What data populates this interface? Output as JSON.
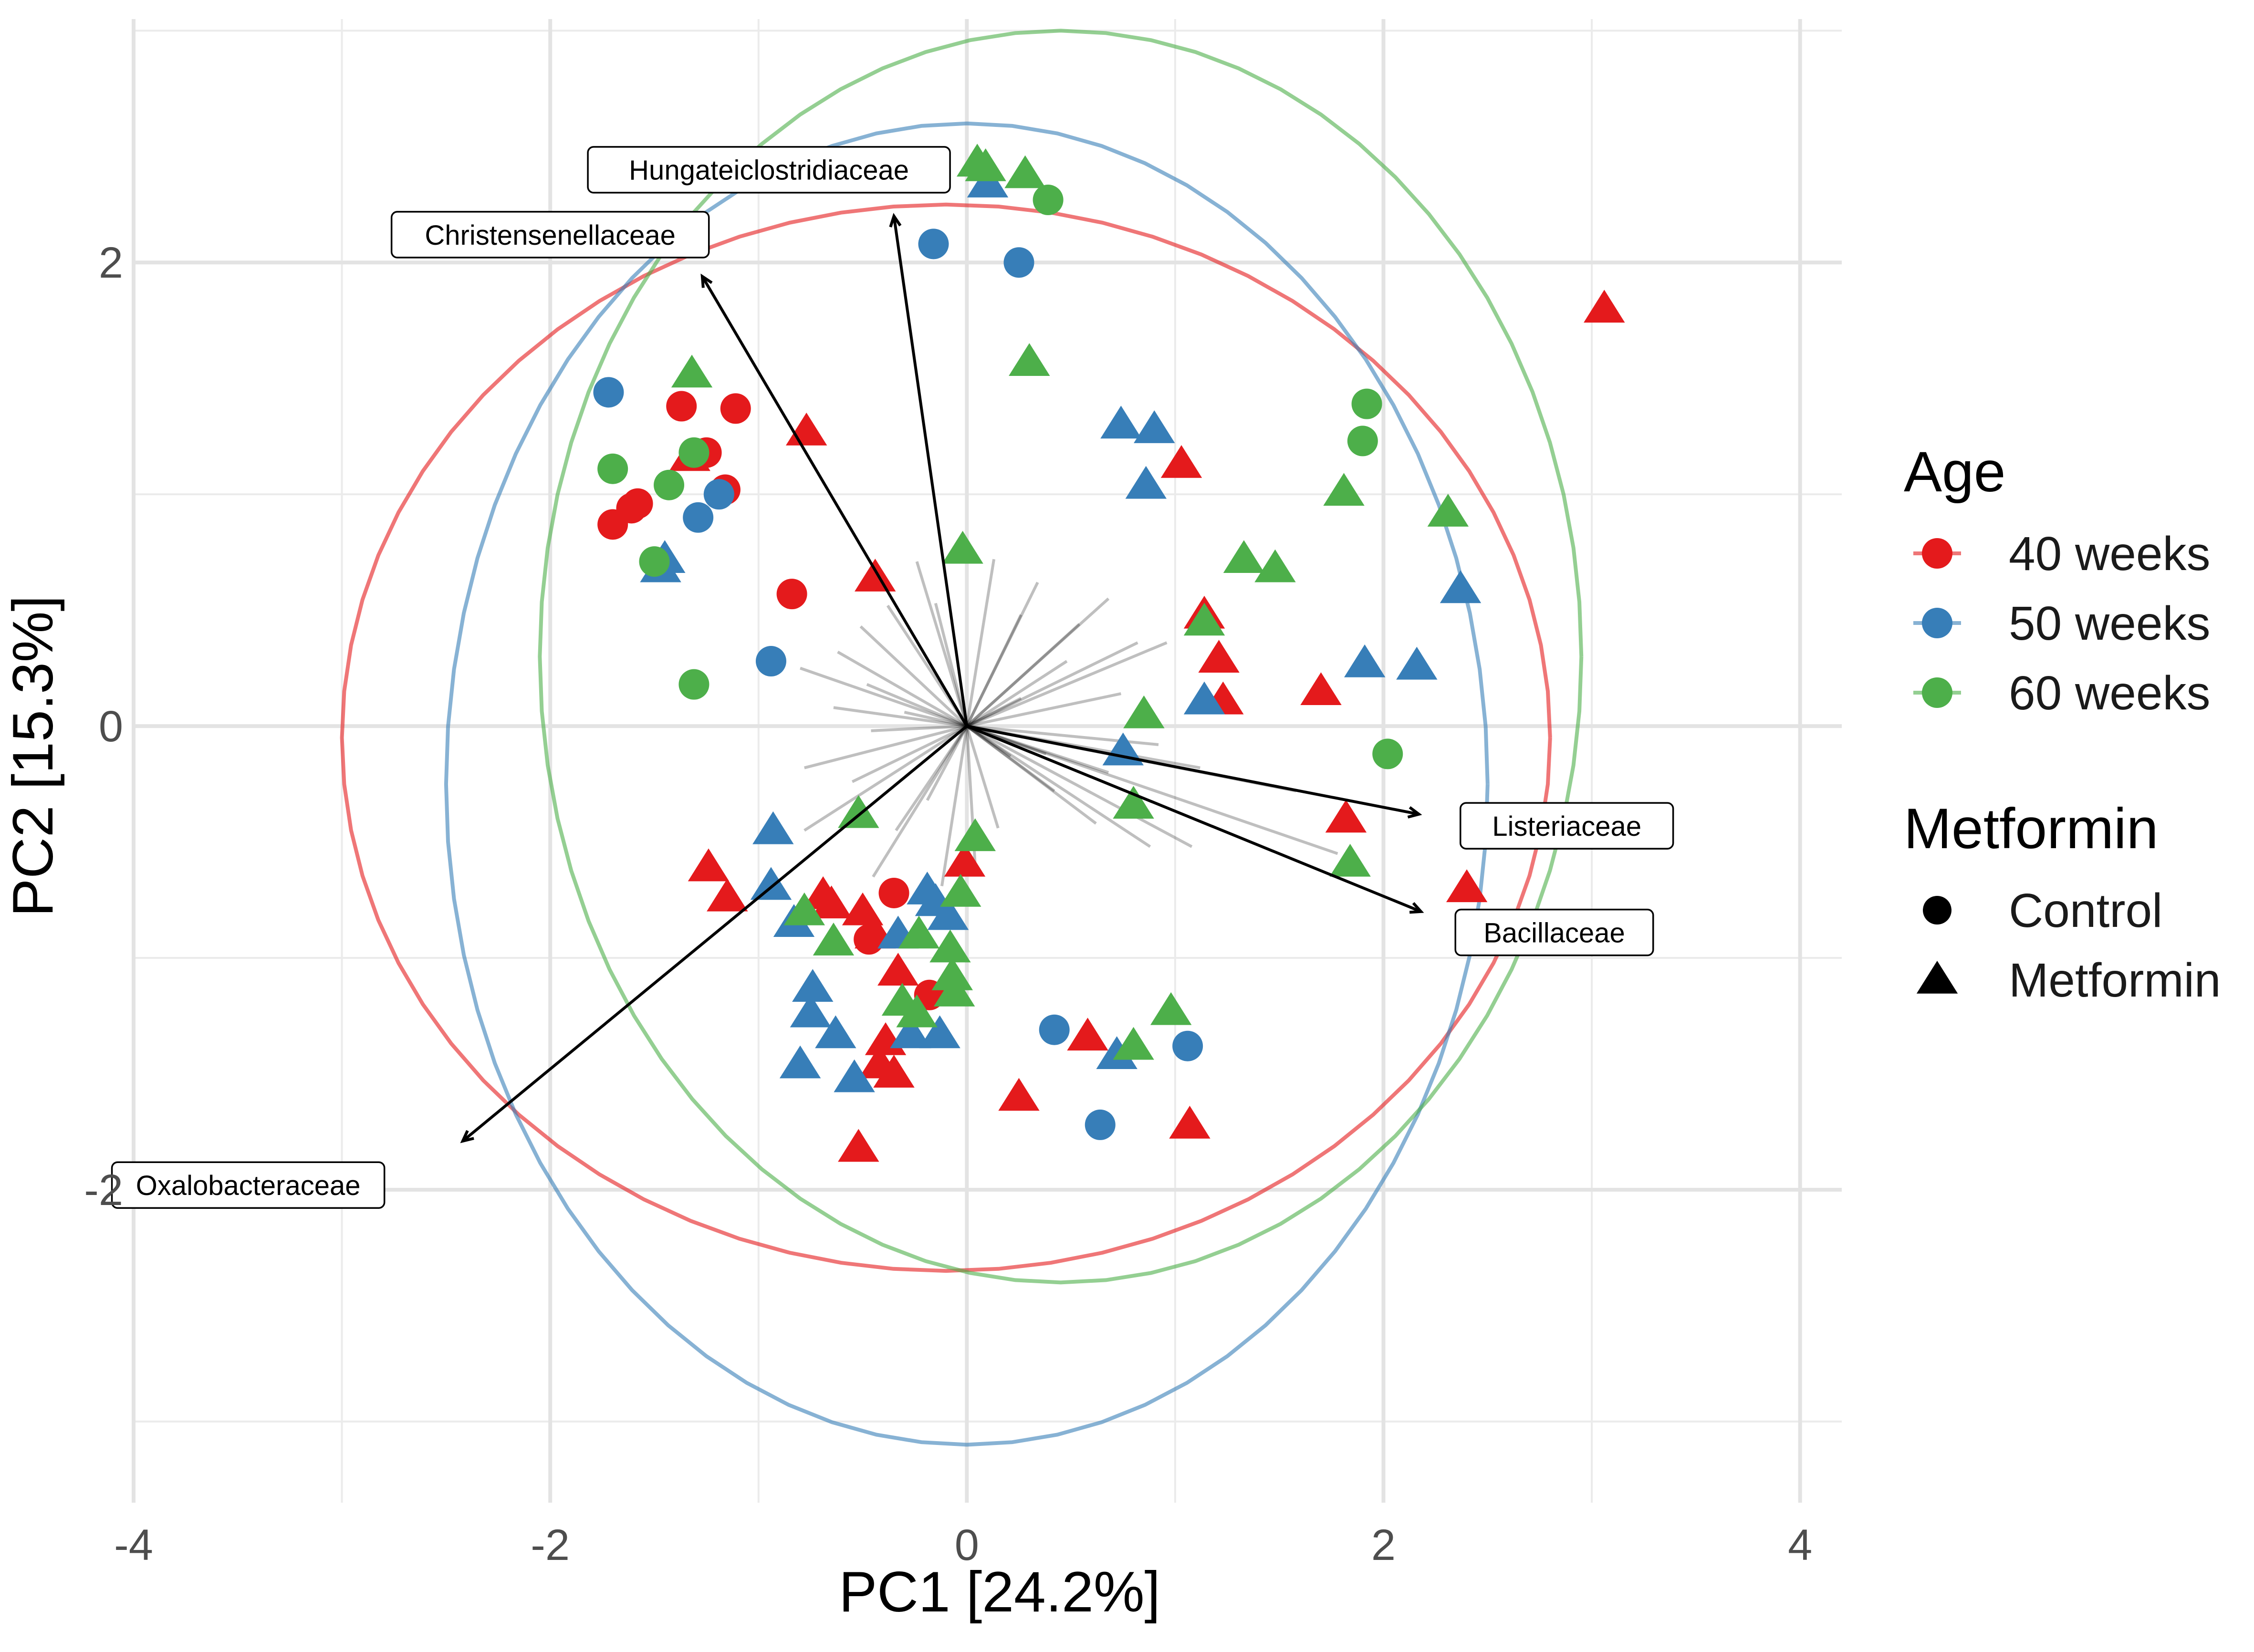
{
  "chart_data": {
    "type": "scatter",
    "subtype": "pca-biplot",
    "title": "",
    "xlabel": "PC1 [24.2%]",
    "ylabel": "PC2 [15.3%]",
    "xlim": [
      -4.0,
      4.2
    ],
    "ylim": [
      -3.35,
      3.05
    ],
    "x_ticks": [
      -4,
      -2,
      0,
      2,
      4
    ],
    "x_tick_labels": [
      "-4",
      "-2",
      "0",
      "2",
      "4"
    ],
    "y_ticks": [
      -2,
      0,
      2
    ],
    "y_tick_labels": [
      "-2",
      "0",
      "2"
    ],
    "grid": true,
    "legend_position": "right",
    "legends": [
      {
        "title": "Age",
        "entries": [
          {
            "label": "40 weeks",
            "color": "#E41A1C"
          },
          {
            "label": "50 weeks",
            "color": "#377EB8"
          },
          {
            "label": "60 weeks",
            "color": "#4DAF4A"
          }
        ]
      },
      {
        "title": "Metformin",
        "entries": [
          {
            "label": "Control",
            "shape": "circle"
          },
          {
            "label": "Metformin",
            "shape": "triangle"
          }
        ]
      }
    ],
    "colors": {
      "40 weeks": "#E41A1C",
      "50 weeks": "#377EB8",
      "60 weeks": "#4DAF4A"
    },
    "ellipses": [
      {
        "group": "40 weeks",
        "cx": -0.1,
        "cy": -0.05,
        "rx": 2.9,
        "ry": 2.3,
        "color": "#E41A1C"
      },
      {
        "group": "50 weeks",
        "cx": 0.0,
        "cy": -0.25,
        "rx": 2.5,
        "ry": 2.85,
        "color": "#377EB8"
      },
      {
        "group": "60 weeks",
        "cx": 0.45,
        "cy": 0.3,
        "rx": 2.5,
        "ry": 2.7,
        "color": "#4DAF4A"
      }
    ],
    "loadings": [
      {
        "label": "Hungateiclostridiaceae",
        "x": -0.35,
        "y": 2.2,
        "label_x": -0.95,
        "label_y": 2.4
      },
      {
        "label": "Christensenellaceae",
        "x": -1.27,
        "y": 1.94,
        "label_x": -2.0,
        "label_y": 2.12
      },
      {
        "label": "Listeriaceae",
        "x": 2.17,
        "y": -0.38,
        "label_x": 2.88,
        "label_y": -0.43
      },
      {
        "label": "Bacillaceae",
        "x": 2.18,
        "y": -0.8,
        "label_x": 2.82,
        "label_y": -0.89
      },
      {
        "label": "Oxalobacteraceae",
        "x": -2.42,
        "y": -1.79,
        "label_x": -3.45,
        "label_y": -1.98
      }
    ],
    "minor_loadings": [
      [
        -0.24,
        0.71
      ],
      [
        -0.15,
        0.53
      ],
      [
        0.13,
        0.72
      ],
      [
        0.34,
        0.62
      ],
      [
        0.68,
        0.55
      ],
      [
        0.82,
        0.36
      ],
      [
        0.96,
        0.36
      ],
      [
        0.48,
        0.28
      ],
      [
        0.74,
        0.14
      ],
      [
        0.26,
        0.12
      ],
      [
        -0.38,
        0.52
      ],
      [
        -0.51,
        0.43
      ],
      [
        -0.62,
        0.32
      ],
      [
        -0.8,
        0.25
      ],
      [
        -0.48,
        0.18
      ],
      [
        -0.3,
        0.06
      ],
      [
        -0.46,
        -0.02
      ],
      [
        -0.78,
        -0.18
      ],
      [
        -0.55,
        -0.24
      ],
      [
        -0.78,
        -0.45
      ],
      [
        -0.34,
        -0.45
      ],
      [
        -0.12,
        -0.69
      ],
      [
        0.04,
        -0.6
      ],
      [
        0.15,
        -0.44
      ],
      [
        0.42,
        -0.28
      ],
      [
        0.62,
        -0.42
      ],
      [
        0.88,
        -0.52
      ],
      [
        0.68,
        -0.2
      ],
      [
        0.38,
        -0.12
      ],
      [
        0.92,
        -0.08
      ],
      [
        -0.64,
        0.08
      ],
      [
        0.54,
        0.44
      ],
      [
        -0.19,
        -0.32
      ],
      [
        0.26,
        0.48
      ],
      [
        0.21,
        -0.13
      ],
      [
        -0.45,
        -0.65
      ],
      [
        1.12,
        -0.18
      ],
      [
        1.58,
        -0.28
      ],
      [
        1.08,
        -0.52
      ],
      [
        1.78,
        -0.55
      ]
    ],
    "points": [
      {
        "x": 3.06,
        "y": 1.8,
        "age": "40 weeks",
        "shape": "triangle"
      },
      {
        "x": -1.37,
        "y": 1.38,
        "age": "40 weeks",
        "shape": "circle"
      },
      {
        "x": -1.11,
        "y": 1.37,
        "age": "40 weeks",
        "shape": "circle"
      },
      {
        "x": -1.25,
        "y": 1.18,
        "age": "40 weeks",
        "shape": "circle"
      },
      {
        "x": -1.33,
        "y": 1.16,
        "age": "40 weeks",
        "shape": "triangle"
      },
      {
        "x": -1.16,
        "y": 1.02,
        "age": "40 weeks",
        "shape": "circle"
      },
      {
        "x": -1.58,
        "y": 0.96,
        "age": "40 weeks",
        "shape": "circle"
      },
      {
        "x": -1.61,
        "y": 0.94,
        "age": "40 weeks",
        "shape": "circle"
      },
      {
        "x": -1.7,
        "y": 0.87,
        "age": "40 weeks",
        "shape": "circle"
      },
      {
        "x": -0.77,
        "y": 1.27,
        "age": "40 weeks",
        "shape": "triangle"
      },
      {
        "x": -0.84,
        "y": 0.57,
        "age": "40 weeks",
        "shape": "circle"
      },
      {
        "x": -0.44,
        "y": 0.64,
        "age": "40 weeks",
        "shape": "triangle"
      },
      {
        "x": 1.03,
        "y": 1.13,
        "age": "40 weeks",
        "shape": "triangle"
      },
      {
        "x": 1.14,
        "y": 0.48,
        "age": "40 weeks",
        "shape": "triangle"
      },
      {
        "x": 1.21,
        "y": 0.29,
        "age": "40 weeks",
        "shape": "triangle"
      },
      {
        "x": 1.23,
        "y": 0.11,
        "age": "40 weeks",
        "shape": "triangle"
      },
      {
        "x": 1.7,
        "y": 0.15,
        "age": "40 weeks",
        "shape": "triangle"
      },
      {
        "x": 1.82,
        "y": -0.4,
        "age": "40 weeks",
        "shape": "triangle"
      },
      {
        "x": 2.4,
        "y": -0.7,
        "age": "40 weeks",
        "shape": "triangle"
      },
      {
        "x": -1.24,
        "y": -0.61,
        "age": "40 weeks",
        "shape": "triangle"
      },
      {
        "x": -1.15,
        "y": -0.74,
        "age": "40 weeks",
        "shape": "triangle"
      },
      {
        "x": -0.69,
        "y": -0.73,
        "age": "40 weeks",
        "shape": "triangle"
      },
      {
        "x": -0.65,
        "y": -0.77,
        "age": "40 weeks",
        "shape": "triangle"
      },
      {
        "x": -0.5,
        "y": -0.8,
        "age": "40 weeks",
        "shape": "triangle"
      },
      {
        "x": -0.35,
        "y": -0.72,
        "age": "40 weeks",
        "shape": "circle"
      },
      {
        "x": -0.44,
        "y": -0.9,
        "age": "40 weeks",
        "shape": "triangle"
      },
      {
        "x": -0.47,
        "y": -0.92,
        "age": "40 weeks",
        "shape": "circle"
      },
      {
        "x": -0.33,
        "y": -1.06,
        "age": "40 weeks",
        "shape": "triangle"
      },
      {
        "x": -0.18,
        "y": -1.16,
        "age": "40 weeks",
        "shape": "circle"
      },
      {
        "x": -0.39,
        "y": -1.36,
        "age": "40 weeks",
        "shape": "triangle"
      },
      {
        "x": -0.35,
        "y": -1.5,
        "age": "40 weeks",
        "shape": "triangle"
      },
      {
        "x": -0.42,
        "y": -1.46,
        "age": "40 weeks",
        "shape": "triangle"
      },
      {
        "x": -0.52,
        "y": -1.82,
        "age": "40 weeks",
        "shape": "triangle"
      },
      {
        "x": -0.01,
        "y": -0.59,
        "age": "40 weeks",
        "shape": "triangle"
      },
      {
        "x": 0.58,
        "y": -1.34,
        "age": "40 weeks",
        "shape": "triangle"
      },
      {
        "x": 0.25,
        "y": -1.6,
        "age": "40 weeks",
        "shape": "triangle"
      },
      {
        "x": 1.07,
        "y": -1.72,
        "age": "40 weeks",
        "shape": "triangle"
      },
      {
        "x": -1.72,
        "y": 1.44,
        "age": "50 weeks",
        "shape": "circle"
      },
      {
        "x": -1.19,
        "y": 1.0,
        "age": "50 weeks",
        "shape": "circle"
      },
      {
        "x": -1.29,
        "y": 0.9,
        "age": "50 weeks",
        "shape": "circle"
      },
      {
        "x": -1.45,
        "y": 0.72,
        "age": "50 weeks",
        "shape": "triangle"
      },
      {
        "x": -1.47,
        "y": 0.68,
        "age": "50 weeks",
        "shape": "triangle"
      },
      {
        "x": -0.94,
        "y": 0.28,
        "age": "50 weeks",
        "shape": "circle"
      },
      {
        "x": -0.16,
        "y": 2.08,
        "age": "50 weeks",
        "shape": "circle"
      },
      {
        "x": 0.1,
        "y": 2.34,
        "age": "50 weeks",
        "shape": "triangle"
      },
      {
        "x": 0.25,
        "y": 2.0,
        "age": "50 weeks",
        "shape": "circle"
      },
      {
        "x": 0.74,
        "y": 1.3,
        "age": "50 weeks",
        "shape": "triangle"
      },
      {
        "x": 0.9,
        "y": 1.28,
        "age": "50 weeks",
        "shape": "triangle"
      },
      {
        "x": 0.86,
        "y": 1.04,
        "age": "50 weeks",
        "shape": "triangle"
      },
      {
        "x": 1.14,
        "y": 0.11,
        "age": "50 weeks",
        "shape": "triangle"
      },
      {
        "x": 1.91,
        "y": 0.27,
        "age": "50 weeks",
        "shape": "triangle"
      },
      {
        "x": 2.16,
        "y": 0.26,
        "age": "50 weeks",
        "shape": "triangle"
      },
      {
        "x": 2.37,
        "y": 0.59,
        "age": "50 weeks",
        "shape": "triangle"
      },
      {
        "x": 0.75,
        "y": -0.11,
        "age": "50 weeks",
        "shape": "triangle"
      },
      {
        "x": -0.93,
        "y": -0.45,
        "age": "50 weeks",
        "shape": "triangle"
      },
      {
        "x": -0.94,
        "y": -0.69,
        "age": "50 weeks",
        "shape": "triangle"
      },
      {
        "x": -0.83,
        "y": -0.85,
        "age": "50 weeks",
        "shape": "triangle"
      },
      {
        "x": -0.19,
        "y": -0.71,
        "age": "50 weeks",
        "shape": "triangle"
      },
      {
        "x": -0.15,
        "y": -0.76,
        "age": "50 weeks",
        "shape": "triangle"
      },
      {
        "x": -0.09,
        "y": -0.82,
        "age": "50 weeks",
        "shape": "triangle"
      },
      {
        "x": -0.33,
        "y": -0.9,
        "age": "50 weeks",
        "shape": "triangle"
      },
      {
        "x": -0.74,
        "y": -1.13,
        "age": "50 weeks",
        "shape": "triangle"
      },
      {
        "x": -0.75,
        "y": -1.24,
        "age": "50 weeks",
        "shape": "triangle"
      },
      {
        "x": -0.63,
        "y": -1.33,
        "age": "50 weeks",
        "shape": "triangle"
      },
      {
        "x": -0.27,
        "y": -1.33,
        "age": "50 weeks",
        "shape": "triangle"
      },
      {
        "x": -0.13,
        "y": -1.33,
        "age": "50 weeks",
        "shape": "triangle"
      },
      {
        "x": -0.8,
        "y": -1.46,
        "age": "50 weeks",
        "shape": "triangle"
      },
      {
        "x": -0.54,
        "y": -1.52,
        "age": "50 weeks",
        "shape": "triangle"
      },
      {
        "x": 0.42,
        "y": -1.31,
        "age": "50 weeks",
        "shape": "circle"
      },
      {
        "x": 0.72,
        "y": -1.42,
        "age": "50 weeks",
        "shape": "triangle"
      },
      {
        "x": 1.06,
        "y": -1.38,
        "age": "50 weeks",
        "shape": "circle"
      },
      {
        "x": 0.64,
        "y": -1.72,
        "age": "50 weeks",
        "shape": "circle"
      },
      {
        "x": 0.05,
        "y": 2.43,
        "age": "60 weeks",
        "shape": "triangle"
      },
      {
        "x": 0.09,
        "y": 2.41,
        "age": "60 weeks",
        "shape": "triangle"
      },
      {
        "x": 0.28,
        "y": 2.38,
        "age": "60 weeks",
        "shape": "triangle"
      },
      {
        "x": 0.39,
        "y": 2.27,
        "age": "60 weeks",
        "shape": "circle"
      },
      {
        "x": 0.3,
        "y": 1.57,
        "age": "60 weeks",
        "shape": "triangle"
      },
      {
        "x": -1.32,
        "y": 1.52,
        "age": "60 weeks",
        "shape": "triangle"
      },
      {
        "x": -1.31,
        "y": 1.18,
        "age": "60 weeks",
        "shape": "circle"
      },
      {
        "x": -1.7,
        "y": 1.11,
        "age": "60 weeks",
        "shape": "circle"
      },
      {
        "x": -1.43,
        "y": 1.04,
        "age": "60 weeks",
        "shape": "circle"
      },
      {
        "x": -1.5,
        "y": 0.71,
        "age": "60 weeks",
        "shape": "circle"
      },
      {
        "x": -1.31,
        "y": 0.18,
        "age": "60 weeks",
        "shape": "circle"
      },
      {
        "x": -0.02,
        "y": 0.76,
        "age": "60 weeks",
        "shape": "triangle"
      },
      {
        "x": 1.92,
        "y": 1.39,
        "age": "60 weeks",
        "shape": "circle"
      },
      {
        "x": 1.9,
        "y": 1.23,
        "age": "60 weeks",
        "shape": "circle"
      },
      {
        "x": 1.81,
        "y": 1.01,
        "age": "60 weeks",
        "shape": "triangle"
      },
      {
        "x": 2.31,
        "y": 0.92,
        "age": "60 weeks",
        "shape": "triangle"
      },
      {
        "x": 1.33,
        "y": 0.72,
        "age": "60 weeks",
        "shape": "triangle"
      },
      {
        "x": 1.48,
        "y": 0.68,
        "age": "60 weeks",
        "shape": "triangle"
      },
      {
        "x": 1.14,
        "y": 0.45,
        "age": "60 weeks",
        "shape": "triangle"
      },
      {
        "x": 0.85,
        "y": 0.05,
        "age": "60 weeks",
        "shape": "triangle"
      },
      {
        "x": 2.02,
        "y": -0.12,
        "age": "60 weeks",
        "shape": "circle"
      },
      {
        "x": 0.8,
        "y": -0.34,
        "age": "60 weeks",
        "shape": "triangle"
      },
      {
        "x": 1.84,
        "y": -0.59,
        "age": "60 weeks",
        "shape": "triangle"
      },
      {
        "x": -0.52,
        "y": -0.38,
        "age": "60 weeks",
        "shape": "triangle"
      },
      {
        "x": 0.04,
        "y": -0.48,
        "age": "60 weeks",
        "shape": "triangle"
      },
      {
        "x": -0.03,
        "y": -0.72,
        "age": "60 weeks",
        "shape": "triangle"
      },
      {
        "x": -0.78,
        "y": -0.8,
        "age": "60 weeks",
        "shape": "triangle"
      },
      {
        "x": -0.64,
        "y": -0.93,
        "age": "60 weeks",
        "shape": "triangle"
      },
      {
        "x": -0.23,
        "y": -0.9,
        "age": "60 weeks",
        "shape": "triangle"
      },
      {
        "x": -0.08,
        "y": -0.96,
        "age": "60 weeks",
        "shape": "triangle"
      },
      {
        "x": -0.07,
        "y": -1.08,
        "age": "60 weeks",
        "shape": "triangle"
      },
      {
        "x": -0.06,
        "y": -1.15,
        "age": "60 weeks",
        "shape": "triangle"
      },
      {
        "x": -0.31,
        "y": -1.19,
        "age": "60 weeks",
        "shape": "triangle"
      },
      {
        "x": -0.24,
        "y": -1.24,
        "age": "60 weeks",
        "shape": "triangle"
      },
      {
        "x": 0.98,
        "y": -1.23,
        "age": "60 weeks",
        "shape": "triangle"
      },
      {
        "x": 0.8,
        "y": -1.38,
        "age": "60 weeks",
        "shape": "triangle"
      }
    ]
  }
}
